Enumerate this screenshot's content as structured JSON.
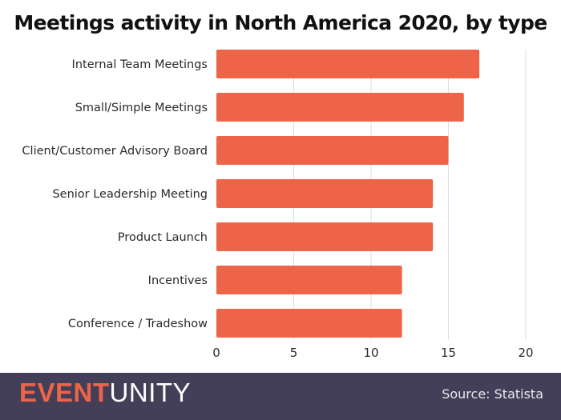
{
  "chart_data": {
    "type": "bar",
    "orientation": "horizontal",
    "title": "Meetings activity in North America 2020, by type",
    "categories": [
      "Internal Team Meetings",
      "Small/Simple Meetings",
      "Client/Customer Advisory Board",
      "Senior Leadership Meeting",
      "Product Launch",
      "Incentives",
      "Conference / Tradeshow"
    ],
    "values": [
      17,
      16,
      15,
      14,
      14,
      12,
      12
    ],
    "xlabel": "",
    "ylabel": "",
    "xlim": [
      0,
      20
    ],
    "xticks": [
      0,
      5,
      10,
      15,
      20
    ],
    "grid": true,
    "legend": "none",
    "bar_color": "#ee6448"
  },
  "footer": {
    "brand_accent": "EVENT",
    "brand_rest": "UNITY",
    "source": "Source: Statista",
    "background_color": "#433f58"
  }
}
